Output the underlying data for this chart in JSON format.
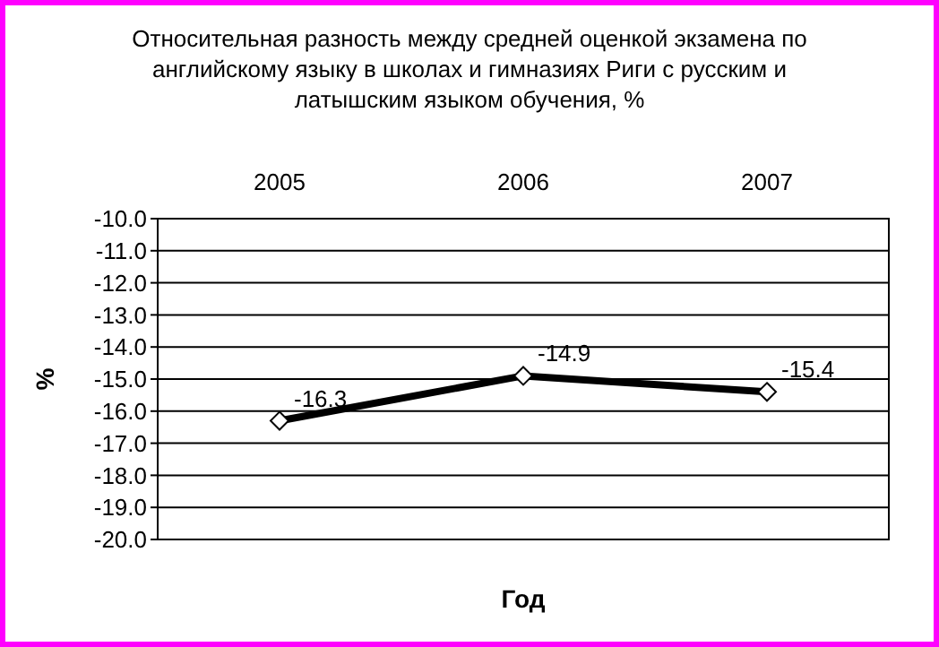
{
  "chart_data": {
    "type": "line",
    "title": "Относительная разность между средней оценкой экзамена по английскому языку в школах и гимназиях Риги с русским и латышским языком обучения, %",
    "xlabel": "Год",
    "ylabel": "%",
    "categories": [
      "2005",
      "2006",
      "2007"
    ],
    "series": [
      {
        "color": "#000000",
        "values": [
          -16.3,
          -14.9,
          -15.4
        ]
      }
    ],
    "ylim": [
      -20,
      -10
    ],
    "yticks": [
      {
        "value": -10,
        "label": "-10.0"
      },
      {
        "value": -11,
        "label": "-11.0"
      },
      {
        "value": -12,
        "label": "-12.0"
      },
      {
        "value": -13,
        "label": "-13.0"
      },
      {
        "value": -14,
        "label": "-14.0"
      },
      {
        "value": -15,
        "label": "-15.0"
      },
      {
        "value": -16,
        "label": "-16.0"
      },
      {
        "value": -17,
        "label": "-17.0"
      },
      {
        "value": -18,
        "label": "-18.0"
      },
      {
        "value": -19,
        "label": "-19.0"
      },
      {
        "value": -20,
        "label": "-20.0"
      }
    ],
    "grid": "y",
    "marker": "diamond",
    "line_style": "solid",
    "data_labels": true
  }
}
